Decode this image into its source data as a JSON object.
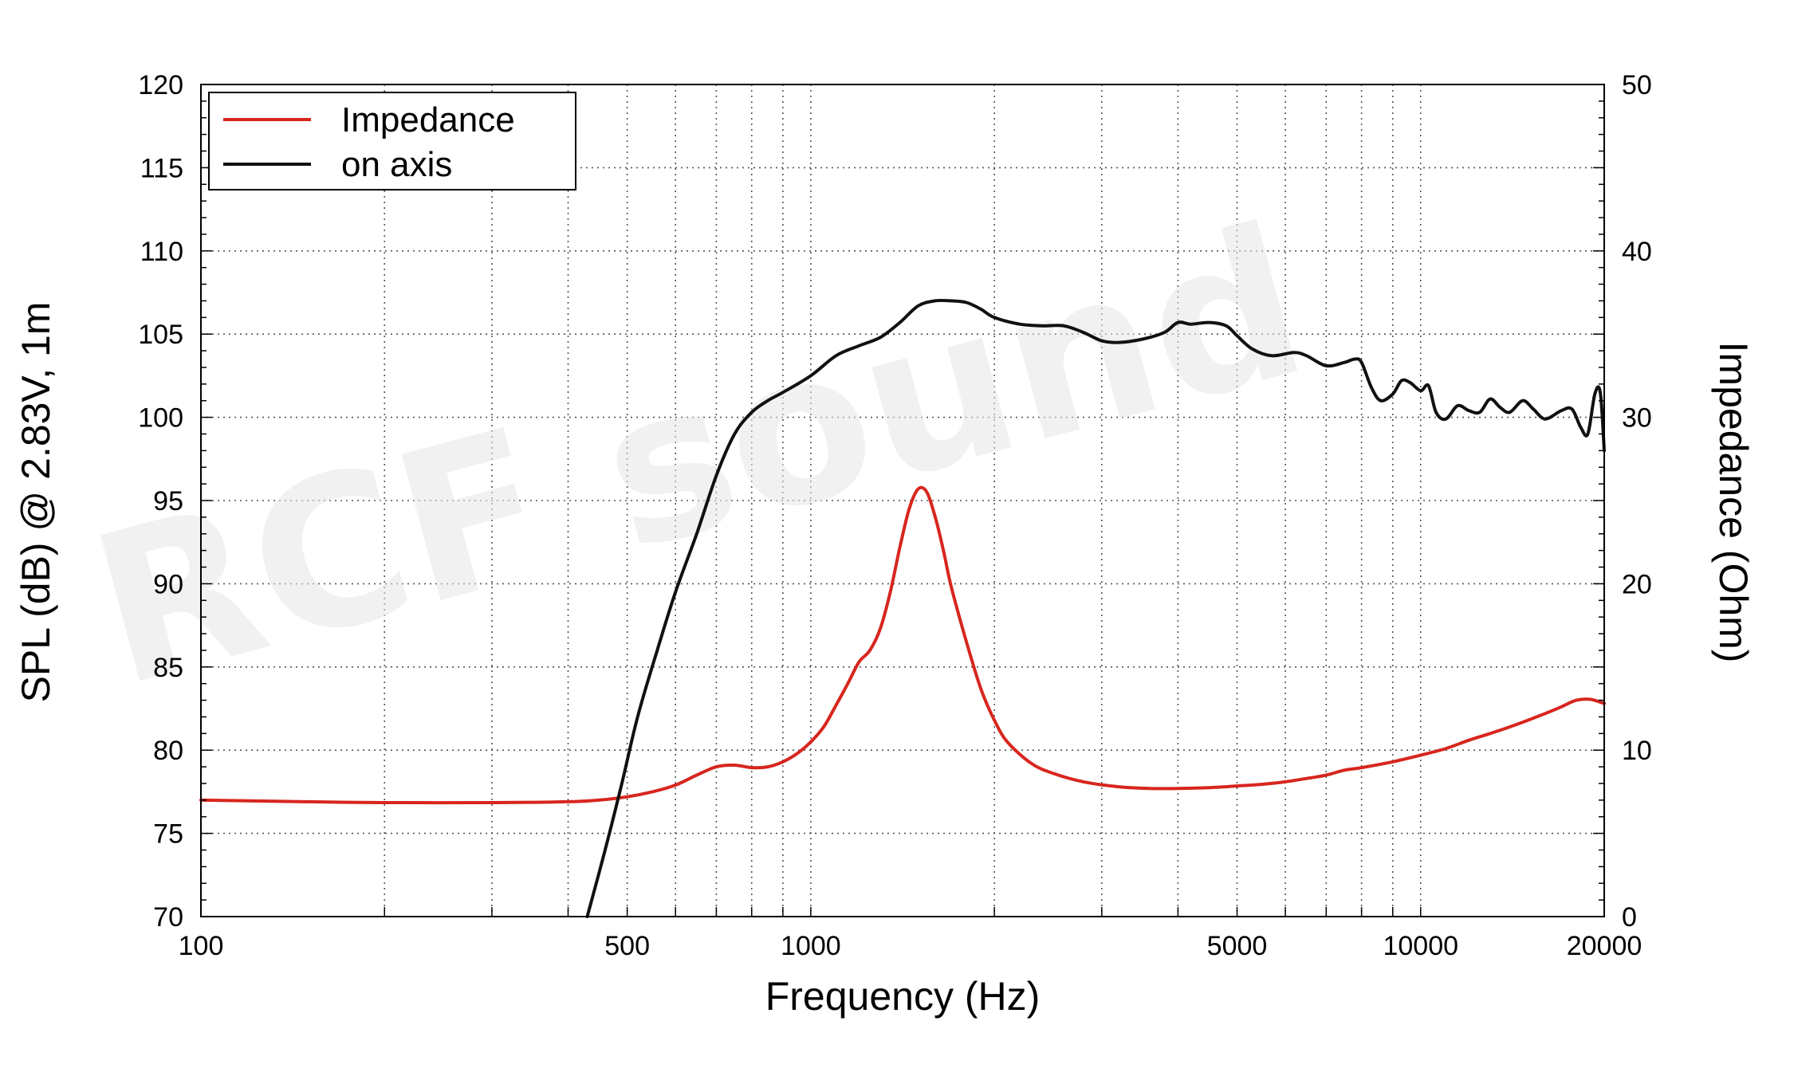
{
  "chart_data": {
    "type": "line",
    "title": "",
    "xlabel": "Frequency (Hz)",
    "ylabel": "SPL (dB) @ 2.83V, 1m",
    "y2label": "Impedance (Ohm)",
    "xscale": "log",
    "xlim": [
      100,
      20000
    ],
    "ylim": [
      70,
      120
    ],
    "y2lim": [
      0,
      50
    ],
    "xticks": [
      100,
      500,
      1000,
      5000,
      10000,
      20000
    ],
    "xtick_labels": [
      "100",
      "500",
      "1000",
      "5000",
      "10000",
      "20000"
    ],
    "yticks": [
      70,
      75,
      80,
      85,
      90,
      95,
      100,
      105,
      110,
      115,
      120
    ],
    "ytick_labels": [
      "70",
      "75",
      "80",
      "85",
      "90",
      "95",
      "100",
      "105",
      "110",
      "115",
      "120"
    ],
    "y2ticks": [
      0,
      10,
      20,
      30,
      40,
      50
    ],
    "y2tick_labels": [
      "0",
      "10",
      "20",
      "30",
      "40",
      "50"
    ],
    "grid": true,
    "legend_position": "top-left",
    "watermark": "RCF sound",
    "series": [
      {
        "name": "Impedance",
        "axis": "right",
        "color": "#d7261e",
        "points": [
          [
            100,
            7.0
          ],
          [
            150,
            6.9
          ],
          [
            200,
            6.85
          ],
          [
            300,
            6.85
          ],
          [
            400,
            6.9
          ],
          [
            450,
            7.0
          ],
          [
            500,
            7.2
          ],
          [
            550,
            7.5
          ],
          [
            600,
            7.9
          ],
          [
            650,
            8.5
          ],
          [
            700,
            9.0
          ],
          [
            750,
            9.1
          ],
          [
            800,
            8.95
          ],
          [
            850,
            9.0
          ],
          [
            900,
            9.3
          ],
          [
            950,
            9.8
          ],
          [
            1000,
            10.5
          ],
          [
            1050,
            11.4
          ],
          [
            1100,
            12.7
          ],
          [
            1150,
            14.0
          ],
          [
            1200,
            15.3
          ],
          [
            1250,
            16.0
          ],
          [
            1300,
            17.3
          ],
          [
            1350,
            19.5
          ],
          [
            1400,
            22.2
          ],
          [
            1450,
            24.5
          ],
          [
            1500,
            25.7
          ],
          [
            1550,
            25.5
          ],
          [
            1600,
            24.0
          ],
          [
            1650,
            22.0
          ],
          [
            1700,
            19.8
          ],
          [
            1800,
            16.5
          ],
          [
            1900,
            13.7
          ],
          [
            2000,
            11.8
          ],
          [
            2100,
            10.5
          ],
          [
            2300,
            9.2
          ],
          [
            2500,
            8.6
          ],
          [
            2800,
            8.1
          ],
          [
            3200,
            7.8
          ],
          [
            3600,
            7.7
          ],
          [
            4000,
            7.7
          ],
          [
            4500,
            7.75
          ],
          [
            5000,
            7.85
          ],
          [
            5500,
            7.95
          ],
          [
            6000,
            8.1
          ],
          [
            6500,
            8.3
          ],
          [
            7000,
            8.5
          ],
          [
            7500,
            8.8
          ],
          [
            8000,
            8.95
          ],
          [
            9000,
            9.3
          ],
          [
            10000,
            9.7
          ],
          [
            11000,
            10.1
          ],
          [
            12000,
            10.6
          ],
          [
            13000,
            11.0
          ],
          [
            14000,
            11.4
          ],
          [
            15000,
            11.8
          ],
          [
            16000,
            12.2
          ],
          [
            17000,
            12.6
          ],
          [
            18000,
            13.0
          ],
          [
            19000,
            13.05
          ],
          [
            20000,
            12.8
          ]
        ]
      },
      {
        "name": "on axis",
        "axis": "left",
        "color": "#111111",
        "points": [
          [
            430,
            70.0
          ],
          [
            460,
            74.0
          ],
          [
            490,
            78.0
          ],
          [
            520,
            82.0
          ],
          [
            560,
            86.0
          ],
          [
            600,
            89.5
          ],
          [
            650,
            93.0
          ],
          [
            700,
            96.5
          ],
          [
            750,
            99.0
          ],
          [
            800,
            100.3
          ],
          [
            850,
            101.0
          ],
          [
            900,
            101.5
          ],
          [
            1000,
            102.5
          ],
          [
            1100,
            103.7
          ],
          [
            1200,
            104.3
          ],
          [
            1300,
            104.8
          ],
          [
            1400,
            105.7
          ],
          [
            1500,
            106.7
          ],
          [
            1600,
            107.0
          ],
          [
            1700,
            107.0
          ],
          [
            1800,
            106.9
          ],
          [
            1900,
            106.5
          ],
          [
            2000,
            106.0
          ],
          [
            2200,
            105.6
          ],
          [
            2400,
            105.5
          ],
          [
            2600,
            105.5
          ],
          [
            2800,
            105.1
          ],
          [
            3000,
            104.6
          ],
          [
            3200,
            104.5
          ],
          [
            3500,
            104.7
          ],
          [
            3800,
            105.1
          ],
          [
            4000,
            105.7
          ],
          [
            4200,
            105.6
          ],
          [
            4500,
            105.7
          ],
          [
            4800,
            105.5
          ],
          [
            5000,
            104.9
          ],
          [
            5300,
            104.1
          ],
          [
            5700,
            103.7
          ],
          [
            6200,
            103.9
          ],
          [
            6500,
            103.7
          ],
          [
            7000,
            103.1
          ],
          [
            7500,
            103.3
          ],
          [
            7800,
            103.5
          ],
          [
            8000,
            103.3
          ],
          [
            8300,
            101.8
          ],
          [
            8600,
            101.0
          ],
          [
            9000,
            101.4
          ],
          [
            9300,
            102.2
          ],
          [
            9600,
            102.1
          ],
          [
            10000,
            101.6
          ],
          [
            10300,
            101.9
          ],
          [
            10600,
            100.3
          ],
          [
            11000,
            99.9
          ],
          [
            11500,
            100.7
          ],
          [
            12000,
            100.4
          ],
          [
            12500,
            100.3
          ],
          [
            13000,
            101.1
          ],
          [
            13500,
            100.6
          ],
          [
            14000,
            100.3
          ],
          [
            14700,
            101.0
          ],
          [
            15300,
            100.5
          ],
          [
            16000,
            99.9
          ],
          [
            17000,
            100.4
          ],
          [
            17700,
            100.5
          ],
          [
            18300,
            99.4
          ],
          [
            18800,
            99.0
          ],
          [
            19300,
            101.4
          ],
          [
            19700,
            101.5
          ],
          [
            20000,
            98.0
          ]
        ]
      }
    ]
  }
}
